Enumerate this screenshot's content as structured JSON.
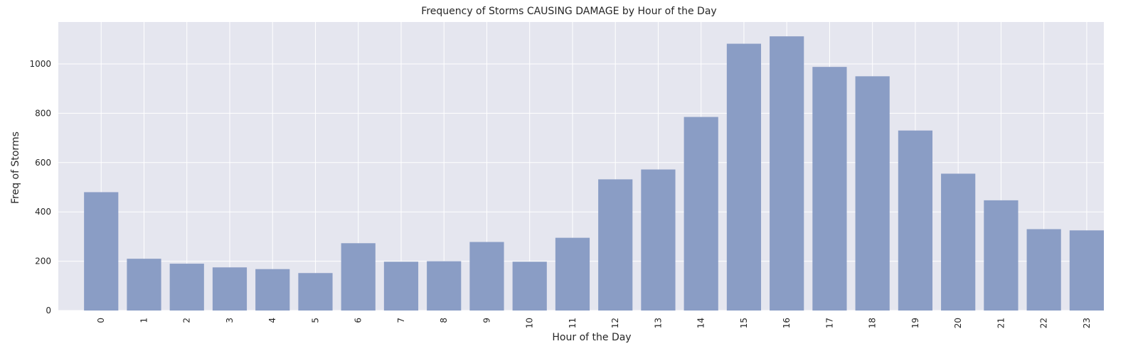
{
  "chart_data": {
    "type": "bar",
    "title": "Frequency of Storms CAUSING DAMAGE by Hour of the Day",
    "xlabel": "Hour of the Day",
    "ylabel": "Freq of Storms",
    "categories": [
      "0",
      "1",
      "2",
      "3",
      "4",
      "5",
      "6",
      "7",
      "8",
      "9",
      "10",
      "11",
      "12",
      "13",
      "14",
      "15",
      "16",
      "17",
      "18",
      "19",
      "20",
      "21",
      "22",
      "23"
    ],
    "values": [
      480,
      210,
      190,
      175,
      168,
      152,
      273,
      198,
      200,
      278,
      198,
      295,
      532,
      572,
      785,
      1082,
      1112,
      988,
      950,
      730,
      555,
      447,
      330,
      325
    ],
    "ylim": [
      0,
      1170
    ],
    "yticks": [
      "0",
      "200",
      "400",
      "600",
      "800",
      "1000"
    ],
    "grid": true,
    "colors": {
      "bar": "#8a9dc5",
      "background": "#e5e6ef",
      "grid": "#ffffff"
    }
  }
}
